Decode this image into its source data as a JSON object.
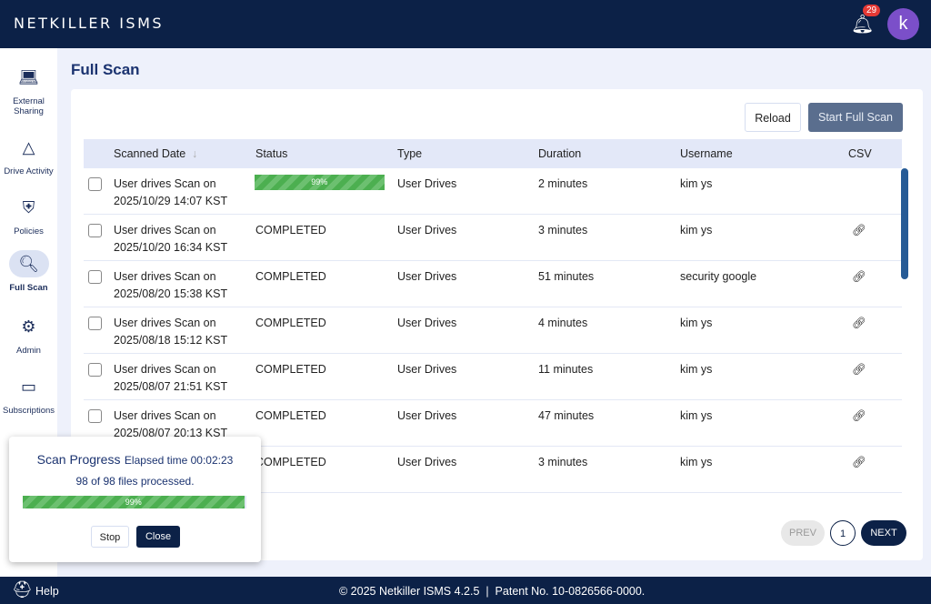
{
  "header": {
    "logo": "NETKILLER ISMS",
    "notifications": "29",
    "avatar": "k"
  },
  "sidebar": [
    {
      "label": "External Sharing",
      "icon": "laptop-share-icon"
    },
    {
      "label": "Drive Activity",
      "icon": "drive-activity-icon"
    },
    {
      "label": "Policies",
      "icon": "shield-icon"
    },
    {
      "label": "Full Scan",
      "icon": "scan-search-icon"
    },
    {
      "label": "Admin",
      "icon": "gear-icon"
    },
    {
      "label": "Subscriptions",
      "icon": "card-icon"
    }
  ],
  "page": {
    "title": "Full Scan",
    "reload": "Reload",
    "start": "Start Full Scan"
  },
  "table": {
    "headers": [
      "Scanned Date",
      "Status",
      "Type",
      "Duration",
      "Username",
      "CSV"
    ],
    "rows": [
      {
        "date1": "User drives Scan on",
        "date2": "2025/10/29 14:07 KST",
        "status": "99%",
        "progress": 99,
        "type": "User Drives",
        "duration": "2 minutes",
        "user": "kim ys"
      },
      {
        "date1": "User drives Scan on",
        "date2": "2025/10/20 16:34 KST",
        "status": "COMPLETED",
        "type": "User Drives",
        "duration": "3 minutes",
        "user": "kim ys"
      },
      {
        "date1": "User drives Scan on",
        "date2": "2025/08/20 15:38 KST",
        "status": "COMPLETED",
        "type": "User Drives",
        "duration": "51 minutes",
        "user": "security google"
      },
      {
        "date1": "User drives Scan on",
        "date2": "2025/08/18 15:12 KST",
        "status": "COMPLETED",
        "type": "User Drives",
        "duration": "4 minutes",
        "user": "kim ys"
      },
      {
        "date1": "User drives Scan on",
        "date2": "2025/08/07 21:51 KST",
        "status": "COMPLETED",
        "type": "User Drives",
        "duration": "11 minutes",
        "user": "kim ys"
      },
      {
        "date1": "User drives Scan on",
        "date2": "2025/08/07 20:13 KST",
        "status": "COMPLETED",
        "type": "User Drives",
        "duration": "47 minutes",
        "user": "kim ys"
      },
      {
        "date1": "",
        "date2": "",
        "status": "COMPLETED",
        "type": "User Drives",
        "duration": "3 minutes",
        "user": "kim ys"
      }
    ]
  },
  "pagination": {
    "prev": "PREV",
    "page": "1",
    "next": "NEXT"
  },
  "popup": {
    "title": "Scan Progress",
    "elapsed": "Elapsed time 00:02:23",
    "files": "98 of 98 files processed.",
    "percent": "99%",
    "progress": 99,
    "stop": "Stop",
    "close": "Close"
  },
  "footer": {
    "help": "Help",
    "copyright": "© 2025 Netkiller ISMS 4.2.5  |  Patent No. 10-0826566-0000."
  }
}
